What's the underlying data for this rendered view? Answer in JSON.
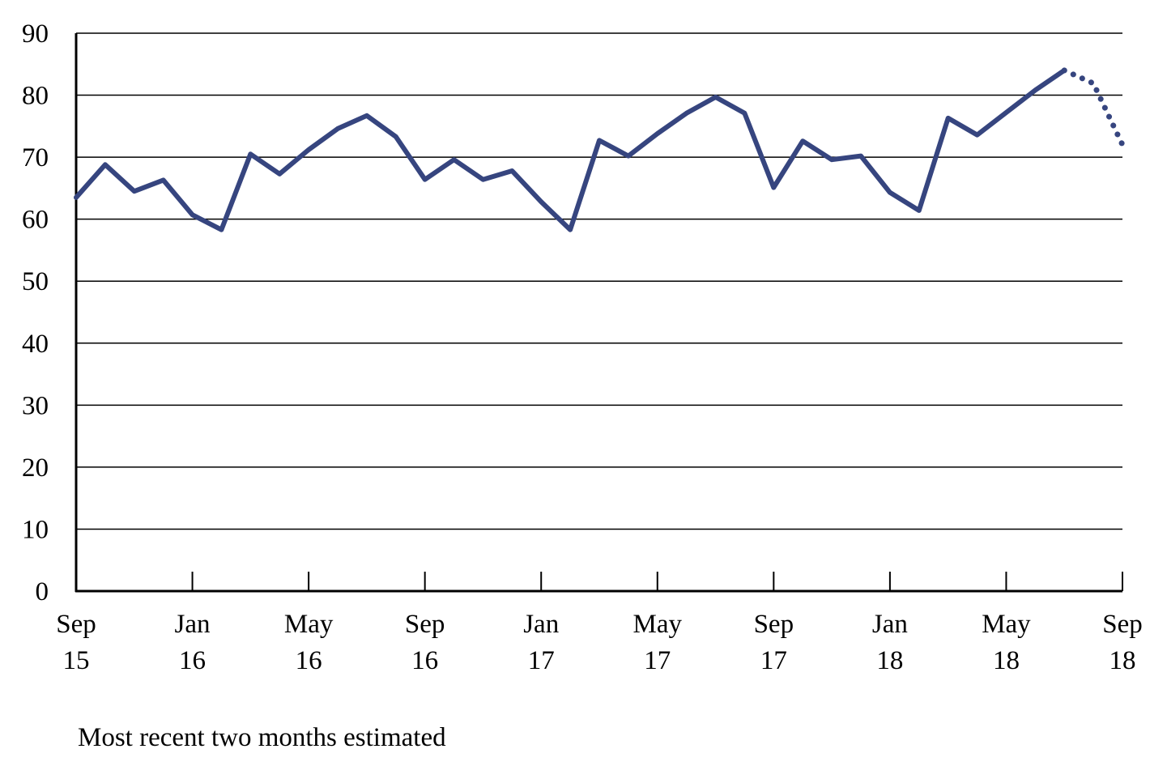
{
  "chart_data": {
    "type": "line",
    "title": "",
    "xlabel": "",
    "ylabel": "",
    "ylim": [
      0,
      90
    ],
    "yticks": [
      0,
      10,
      20,
      30,
      40,
      50,
      60,
      70,
      80,
      90
    ],
    "grid": true,
    "x_tick_labels": [
      {
        "month": "Sep",
        "year": "15"
      },
      {
        "month": "Jan",
        "year": "16"
      },
      {
        "month": "May",
        "year": "16"
      },
      {
        "month": "Sep",
        "year": "16"
      },
      {
        "month": "Jan",
        "year": "17"
      },
      {
        "month": "May",
        "year": "17"
      },
      {
        "month": "Sep",
        "year": "17"
      },
      {
        "month": "Jan",
        "year": "18"
      },
      {
        "month": "May",
        "year": "18"
      },
      {
        "month": "Sep",
        "year": "18"
      }
    ],
    "x": [
      "2015-09",
      "2015-10",
      "2015-11",
      "2015-12",
      "2016-01",
      "2016-02",
      "2016-03",
      "2016-04",
      "2016-05",
      "2016-06",
      "2016-07",
      "2016-08",
      "2016-09",
      "2016-10",
      "2016-11",
      "2016-12",
      "2017-01",
      "2017-02",
      "2017-03",
      "2017-04",
      "2017-05",
      "2017-06",
      "2017-07",
      "2017-08",
      "2017-09",
      "2017-10",
      "2017-11",
      "2017-12",
      "2018-01",
      "2018-02",
      "2018-03",
      "2018-04",
      "2018-05",
      "2018-06",
      "2018-07",
      "2018-08",
      "2018-09"
    ],
    "series": [
      {
        "color": "#36457f",
        "values": [
          63.5,
          68.8,
          64.5,
          66.3,
          60.7,
          58.3,
          70.5,
          67.3,
          71.2,
          74.6,
          76.7,
          73.3,
          66.4,
          69.6,
          66.4,
          67.8,
          62.8,
          58.3,
          72.7,
          70.2,
          73.8,
          77.1,
          79.7,
          77.1,
          65.1,
          72.6,
          69.6,
          70.2,
          64.3,
          61.4,
          76.3,
          73.6,
          77.2,
          80.8,
          84.0,
          81.9,
          72.0
        ],
        "estimated_from_index": 34
      }
    ],
    "footnote": "Most recent two months estimated"
  }
}
